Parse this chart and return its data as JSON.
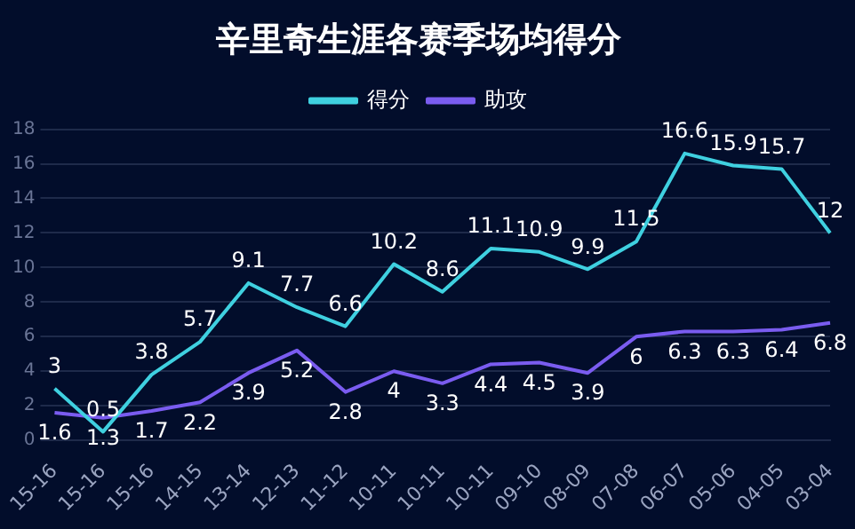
{
  "chart_data": {
    "type": "line",
    "title": "辛里奇生涯各赛季场均得分",
    "categories": [
      "15-16",
      "15-16",
      "15-16",
      "14-15",
      "13-14",
      "12-13",
      "11-12",
      "10-11",
      "10-11",
      "10-11",
      "09-10",
      "08-09",
      "07-08",
      "06-07",
      "05-06",
      "04-05",
      "03-04"
    ],
    "series": [
      {
        "name": "得分",
        "color": "#3fd0e0",
        "values": [
          3,
          0.5,
          3.8,
          5.7,
          9.1,
          7.7,
          6.6,
          10.2,
          8.6,
          11.1,
          10.9,
          9.9,
          11.5,
          16.6,
          15.9,
          15.7,
          12
        ]
      },
      {
        "name": "助攻",
        "color": "#7a5cf0",
        "values": [
          1.6,
          1.3,
          1.7,
          2.2,
          3.9,
          5.2,
          2.8,
          4,
          3.3,
          4.4,
          4.5,
          3.9,
          6,
          6.3,
          6.3,
          6.4,
          6.8
        ]
      }
    ],
    "ylim": [
      0,
      18
    ],
    "yticks": [
      0,
      2,
      4,
      6,
      8,
      10,
      12,
      14,
      16,
      18
    ],
    "grid": "y",
    "legend": "top",
    "marker": "none",
    "line_style": "solid",
    "data_labels": true
  }
}
